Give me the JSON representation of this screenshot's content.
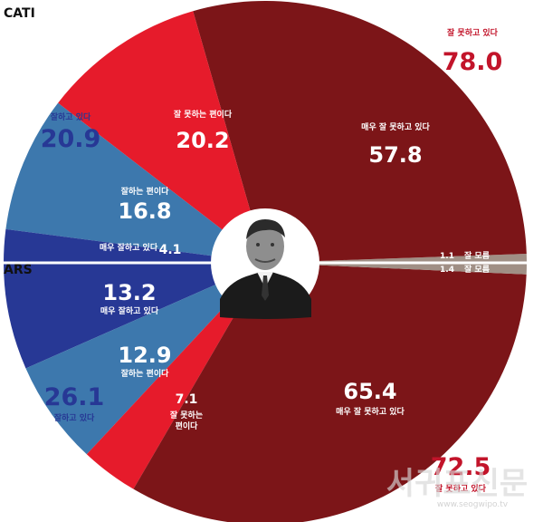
{
  "colors": {
    "dark_red": "#7c1518",
    "red": "#e61b2b",
    "mid_blue": "#3d78ad",
    "navy": "#273895",
    "unknown": "#a08f85",
    "navy_text": "#273895",
    "red_text": "#c2142a"
  },
  "panels": {
    "cati": "CATI",
    "ars": "ARS"
  },
  "chart_data": [
    {
      "type": "pie",
      "panel": "CATI",
      "segments": [
        {
          "label": "매우 잘 못하고 있다",
          "value": 57.8,
          "value_text": "57.8",
          "color": "#7c1518",
          "text_color": "#ffffff"
        },
        {
          "label": "잘 못하는 편이다",
          "value": 20.2,
          "value_text": "20.2",
          "color": "#e61b2b",
          "text_color": "#ffffff"
        },
        {
          "label": "잘하는 편이다",
          "value": 16.8,
          "value_text": "16.8",
          "color": "#3d78ad",
          "text_color": "#ffffff"
        },
        {
          "label": "매우 잘하고 있다",
          "value": 4.1,
          "value_text": "4.1",
          "color": "#273895",
          "text_color": "#ffffff"
        },
        {
          "label": "잘 모름",
          "value": 1.1,
          "value_text": "1.1",
          "color": "#a08f85",
          "text_color": "#ffffff"
        }
      ],
      "totals": [
        {
          "label": "잘하고 있다",
          "value": 20.9,
          "value_text": "20.9",
          "color": "#273895"
        },
        {
          "label": "잘 못하고 있다",
          "value": 78.0,
          "value_text": "78.0",
          "color": "#c2142a"
        }
      ]
    },
    {
      "type": "pie",
      "panel": "ARS",
      "segments": [
        {
          "label": "매우 잘하고 있다",
          "value": 13.2,
          "value_text": "13.2",
          "color": "#273895",
          "text_color": "#ffffff"
        },
        {
          "label": "잘하는 편이다",
          "value": 12.9,
          "value_text": "12.9",
          "color": "#3d78ad",
          "text_color": "#ffffff"
        },
        {
          "label": "잘 못하는 편이다",
          "value": 7.1,
          "value_text": "7.1",
          "color": "#e61b2b",
          "text_color": "#ffffff"
        },
        {
          "label": "매우 잘 못하고 있다",
          "value": 65.4,
          "value_text": "65.4",
          "color": "#7c1518",
          "text_color": "#ffffff"
        },
        {
          "label": "잘 모름",
          "value": 1.4,
          "value_text": "1.4",
          "color": "#a08f85",
          "text_color": "#ffffff"
        }
      ],
      "totals": [
        {
          "label": "잘하고 있다",
          "value": 26.1,
          "value_text": "26.1",
          "color": "#273895"
        },
        {
          "label": "잘 못하고 있다",
          "value": 72.5,
          "value_text": "72.5",
          "color": "#c2142a"
        }
      ]
    }
  ],
  "watermark": {
    "text": "서귀포신문",
    "url": "www.seogwipo.tv"
  },
  "portrait_icon": "president-portrait"
}
